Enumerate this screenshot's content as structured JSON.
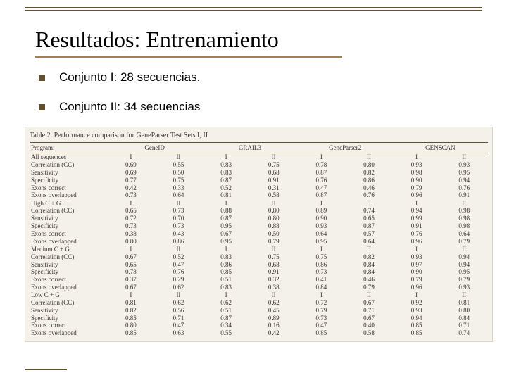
{
  "title": "Resultados: Entrenamiento",
  "bullets": [
    "Conjunto I: 28 secuencias.",
    "Conjunto II: 34 secuencias"
  ],
  "table": {
    "caption": "Table 2. Performance comparison for GeneParser Test Sets I, II",
    "program_label": "Program:",
    "programs": [
      "GeneID",
      "GRAIL3",
      "GeneParser2",
      "GENSCAN"
    ],
    "subheaders": [
      "I",
      "II"
    ],
    "sections": [
      {
        "label": "All sequences",
        "rows": [
          {
            "label": "Correlation (CC)",
            "vals": [
              "0.69",
              "0.55",
              "0.83",
              "0.75",
              "0.78",
              "0.80",
              "0.93",
              "0.93"
            ]
          },
          {
            "label": "Sensitivity",
            "vals": [
              "0.69",
              "0.50",
              "0.83",
              "0.68",
              "0.87",
              "0.82",
              "0.98",
              "0.95"
            ]
          },
          {
            "label": "Specificity",
            "vals": [
              "0.77",
              "0.75",
              "0.87",
              "0.91",
              "0.76",
              "0.86",
              "0.90",
              "0.94"
            ]
          },
          {
            "label": "Exons correct",
            "vals": [
              "0.42",
              "0.33",
              "0.52",
              "0.31",
              "0.47",
              "0.46",
              "0.79",
              "0.76"
            ]
          },
          {
            "label": "Exons overlapped",
            "vals": [
              "0.73",
              "0.64",
              "0.81",
              "0.58",
              "0.87",
              "0.76",
              "0.96",
              "0.91"
            ]
          }
        ]
      },
      {
        "label": "High C + G",
        "sub": [
          "I",
          "II",
          "I",
          "II",
          "I",
          "II",
          "I",
          "II"
        ],
        "rows": [
          {
            "label": "Correlation (CC)",
            "vals": [
              "0.65",
              "0.73",
              "0.88",
              "0.80",
              "0.89",
              "0.74",
              "0.94",
              "0.98"
            ]
          },
          {
            "label": "Sensitivity",
            "vals": [
              "0.72",
              "0.70",
              "0.87",
              "0.80",
              "0.90",
              "0.65",
              "0.99",
              "0.98"
            ]
          },
          {
            "label": "Specificity",
            "vals": [
              "0.73",
              "0.73",
              "0.95",
              "0.88",
              "0.93",
              "0.87",
              "0.91",
              "0.98"
            ]
          },
          {
            "label": "Exons correct",
            "vals": [
              "0.38",
              "0.43",
              "0.67",
              "0.50",
              "0.64",
              "0.57",
              "0.76",
              "0.64"
            ]
          },
          {
            "label": "Exons overlapped",
            "vals": [
              "0.80",
              "0.86",
              "0.95",
              "0.79",
              "0.95",
              "0.64",
              "0.96",
              "0.79"
            ]
          }
        ]
      },
      {
        "label": "Medium C + G",
        "sub": [
          "I",
          "II",
          "I",
          "II",
          "I",
          "II",
          "I",
          "II"
        ],
        "rows": [
          {
            "label": "Correlation (CC)",
            "vals": [
              "0.67",
              "0.52",
              "0.83",
              "0.75",
              "0.75",
              "0.82",
              "0.93",
              "0.94"
            ]
          },
          {
            "label": "Sensitivity",
            "vals": [
              "0.65",
              "0.47",
              "0.86",
              "0.68",
              "0.86",
              "0.84",
              "0.97",
              "0.94"
            ]
          },
          {
            "label": "Specificity",
            "vals": [
              "0.78",
              "0.76",
              "0.85",
              "0.91",
              "0.73",
              "0.84",
              "0.90",
              "0.95"
            ]
          },
          {
            "label": "Exons correct",
            "vals": [
              "0.37",
              "0.29",
              "0.51",
              "0.32",
              "0.41",
              "0.46",
              "0.79",
              "0.79"
            ]
          },
          {
            "label": "Exons overlapped",
            "vals": [
              "0.67",
              "0.62",
              "0.83",
              "0.38",
              "0.84",
              "0.79",
              "0.96",
              "0.93"
            ]
          }
        ]
      },
      {
        "label": "Low C + G",
        "sub": [
          "I",
          "II",
          "I",
          "II",
          "I",
          "II",
          "I",
          "II"
        ],
        "rows": [
          {
            "label": "Correlation (CC)",
            "vals": [
              "0.81",
              "0.62",
              "0.62",
              "0.62",
              "0.72",
              "0.67",
              "0.92",
              "0.81"
            ]
          },
          {
            "label": "Sensitivity",
            "vals": [
              "0.82",
              "0.56",
              "0.51",
              "0.45",
              "0.79",
              "0.71",
              "0.93",
              "0.80"
            ]
          },
          {
            "label": "Specificity",
            "vals": [
              "0.85",
              "0.71",
              "0.87",
              "0.89",
              "0.73",
              "0.67",
              "0.94",
              "0.84"
            ]
          },
          {
            "label": "Exons correct",
            "vals": [
              "0.80",
              "0.47",
              "0.34",
              "0.16",
              "0.47",
              "0.40",
              "0.85",
              "0.71"
            ]
          },
          {
            "label": "Exons overlapped",
            "vals": [
              "0.85",
              "0.63",
              "0.55",
              "0.42",
              "0.85",
              "0.58",
              "0.85",
              "0.74"
            ]
          }
        ]
      }
    ]
  },
  "colors": {
    "accent": "#605030",
    "underline": "#a08050",
    "table_bg": "#f4f1ea",
    "table_text": "#3a362e"
  }
}
